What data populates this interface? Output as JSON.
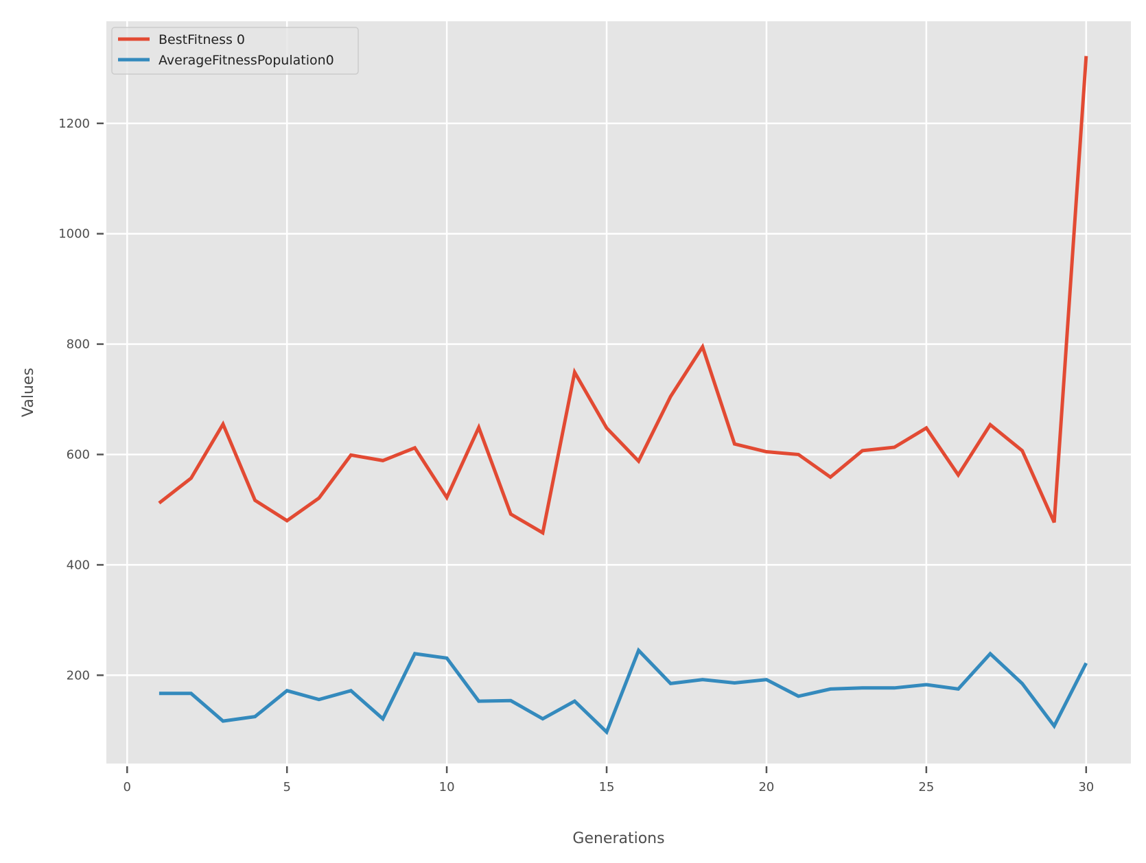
{
  "chart_data": {
    "type": "line",
    "title": "",
    "xlabel": "Generations",
    "ylabel": "Values",
    "xlim": [
      -0.65,
      31.4
    ],
    "ylim": [
      40,
      1385
    ],
    "xticks": [
      0,
      5,
      10,
      15,
      20,
      25,
      30
    ],
    "yticks": [
      200,
      400,
      600,
      800,
      1000,
      1200
    ],
    "grid": true,
    "legend_position": "top-left",
    "x": [
      1,
      2,
      3,
      4,
      5,
      6,
      7,
      8,
      9,
      10,
      11,
      12,
      13,
      14,
      15,
      16,
      17,
      18,
      19,
      20,
      21,
      22,
      23,
      24,
      25,
      26,
      27,
      28,
      29,
      30
    ],
    "series": [
      {
        "name": "BestFitness 0",
        "color": "#e24a33",
        "values": [
          512,
          557,
          655,
          517,
          480,
          521,
          599,
          589,
          612,
          522,
          649,
          492,
          458,
          749,
          648,
          588,
          705,
          795,
          619,
          605,
          600,
          559,
          607,
          613,
          648,
          563,
          654,
          607,
          477,
          1322
        ]
      },
      {
        "name": "AverageFitnessPopulation0",
        "color": "#348abd",
        "values": [
          167,
          167,
          117,
          125,
          172,
          156,
          172,
          121,
          239,
          231,
          153,
          154,
          121,
          153,
          97,
          245,
          185,
          192,
          186,
          192,
          162,
          175,
          177,
          177,
          183,
          175,
          239,
          185,
          108,
          222
        ]
      }
    ]
  }
}
